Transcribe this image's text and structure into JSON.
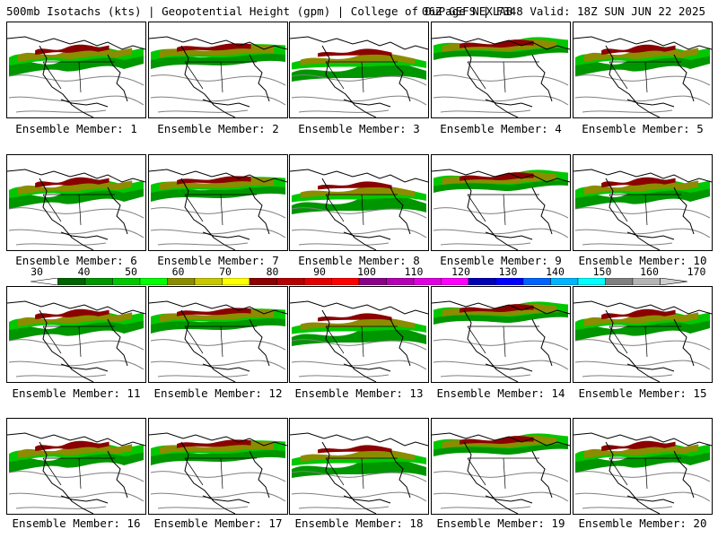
{
  "header": {
    "left": "500mb Isotachs (kts) | Geopotential Height (gpm) | College of DuPage NEXLAB",
    "right": "06Z GEFS | F348 Valid: 18Z SUN JUN 22 2025"
  },
  "panels": [
    {
      "label": "Ensemble Member: 1"
    },
    {
      "label": "Ensemble Member: 2"
    },
    {
      "label": "Ensemble Member: 3"
    },
    {
      "label": "Ensemble Member: 4"
    },
    {
      "label": "Ensemble Member: 5"
    },
    {
      "label": "Ensemble Member: 6"
    },
    {
      "label": "Ensemble Member: 7"
    },
    {
      "label": "Ensemble Member: 8"
    },
    {
      "label": "Ensemble Member: 9"
    },
    {
      "label": "Ensemble Member: 10"
    },
    {
      "label": "Ensemble Member: 11"
    },
    {
      "label": "Ensemble Member: 12"
    },
    {
      "label": "Ensemble Member: 13"
    },
    {
      "label": "Ensemble Member: 14"
    },
    {
      "label": "Ensemble Member: 15"
    },
    {
      "label": "Ensemble Member: 16"
    },
    {
      "label": "Ensemble Member: 17"
    },
    {
      "label": "Ensemble Member: 18"
    },
    {
      "label": "Ensemble Member: 19"
    },
    {
      "label": "Ensemble Member: 20"
    }
  ],
  "colorbar": {
    "ticks": [
      "30",
      "40",
      "50",
      "60",
      "70",
      "80",
      "90",
      "100",
      "110",
      "120",
      "130",
      "140",
      "150",
      "160",
      "170"
    ],
    "colors": [
      "#006400",
      "#009600",
      "#00c800",
      "#00ff00",
      "#8c8c00",
      "#c8c800",
      "#ffff00",
      "#8b0000",
      "#b40000",
      "#e10000",
      "#ff0000",
      "#8b008b",
      "#b400b4",
      "#e100e1",
      "#ff00ff",
      "#0000b4",
      "#0000ff",
      "#0064ff",
      "#00b4ff",
      "#00ffff",
      "#808080",
      "#b4b4b4"
    ]
  }
}
